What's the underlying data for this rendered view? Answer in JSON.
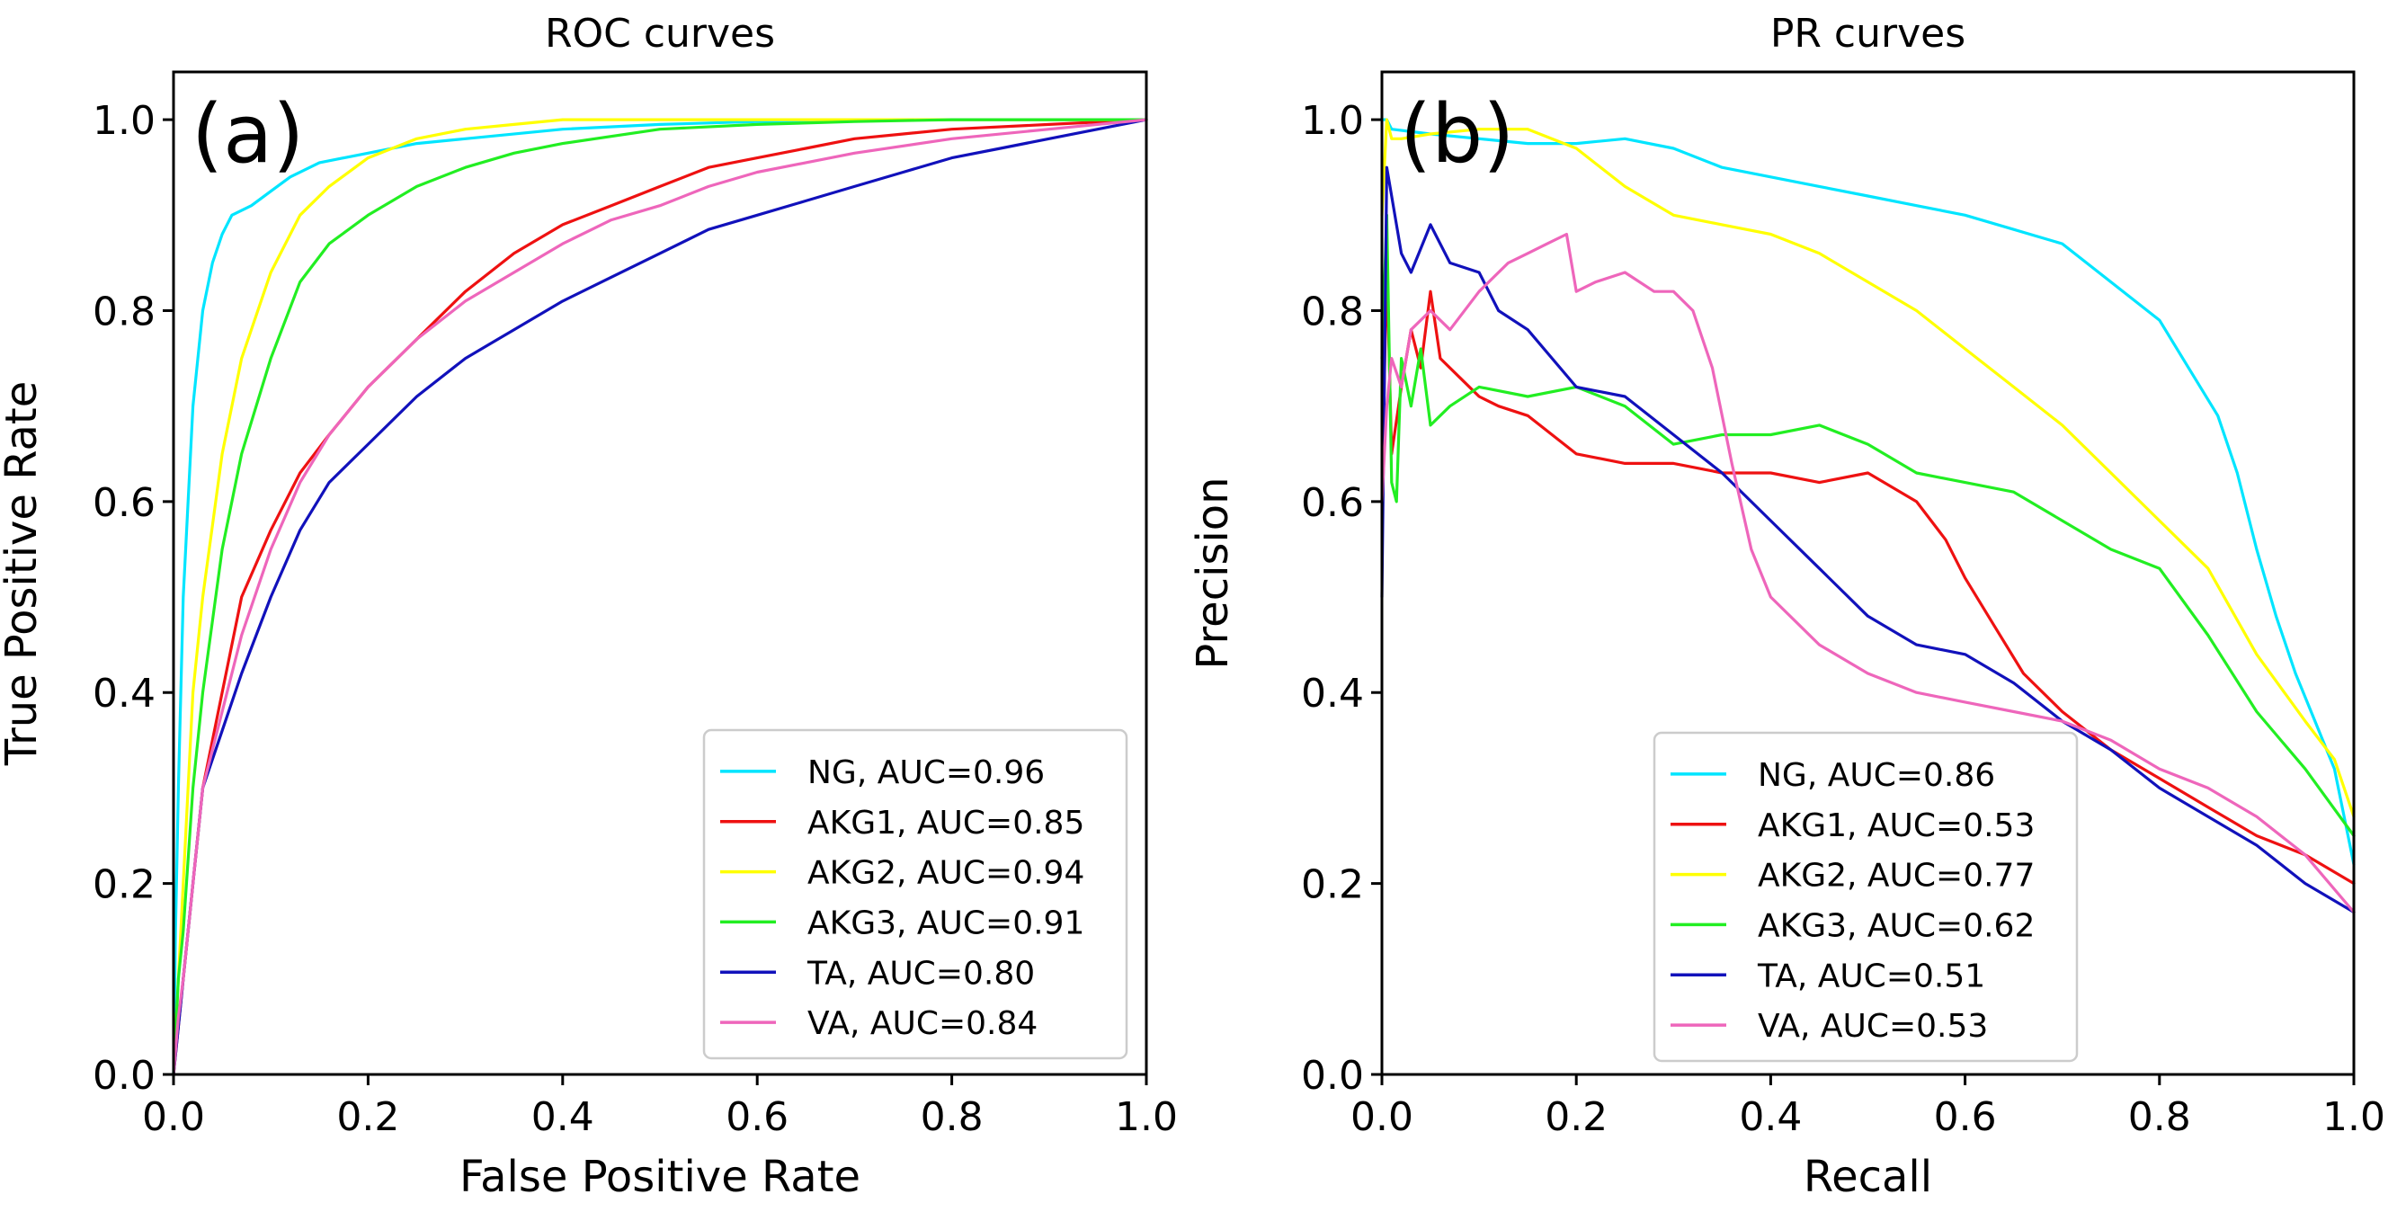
{
  "chart_data": [
    {
      "type": "line",
      "panel_label": "(a)",
      "title": "ROC curves",
      "xlabel": "False Positive Rate",
      "ylabel": "True Positive Rate",
      "xlim": [
        0.0,
        1.0
      ],
      "ylim": [
        0.0,
        1.05
      ],
      "xticks": [
        "0.0",
        "0.2",
        "0.4",
        "0.6",
        "0.8",
        "1.0"
      ],
      "yticks": [
        "0.0",
        "0.2",
        "0.4",
        "0.6",
        "0.8",
        "1.0"
      ],
      "legend_position": "lower-right",
      "series": [
        {
          "name": "NG, AUC=0.96",
          "color": "#00e5ff",
          "x": [
            0,
            0.002,
            0.005,
            0.01,
            0.02,
            0.03,
            0.04,
            0.05,
            0.06,
            0.08,
            0.1,
            0.12,
            0.15,
            0.2,
            0.25,
            0.3,
            0.4,
            0.5,
            0.6,
            0.8,
            1.0
          ],
          "y": [
            0,
            0.15,
            0.3,
            0.5,
            0.7,
            0.8,
            0.85,
            0.88,
            0.9,
            0.91,
            0.925,
            0.94,
            0.955,
            0.965,
            0.975,
            0.98,
            0.99,
            0.995,
            0.998,
            1.0,
            1.0
          ]
        },
        {
          "name": "AKG1, AUC=0.85",
          "color": "#ee1111",
          "x": [
            0,
            0.005,
            0.01,
            0.02,
            0.03,
            0.05,
            0.07,
            0.1,
            0.13,
            0.16,
            0.2,
            0.25,
            0.3,
            0.35,
            0.4,
            0.45,
            0.5,
            0.55,
            0.6,
            0.65,
            0.7,
            0.75,
            0.8,
            0.9,
            1.0
          ],
          "y": [
            0,
            0.05,
            0.1,
            0.2,
            0.3,
            0.4,
            0.5,
            0.57,
            0.63,
            0.67,
            0.72,
            0.77,
            0.82,
            0.86,
            0.89,
            0.91,
            0.93,
            0.95,
            0.96,
            0.97,
            0.98,
            0.985,
            0.99,
            0.995,
            1.0
          ]
        },
        {
          "name": "AKG2, AUC=0.94",
          "color": "#ffff00",
          "x": [
            0,
            0.005,
            0.01,
            0.02,
            0.03,
            0.05,
            0.07,
            0.1,
            0.13,
            0.16,
            0.2,
            0.25,
            0.3,
            0.35,
            0.4,
            0.5,
            0.6,
            0.8,
            1.0
          ],
          "y": [
            0,
            0.1,
            0.2,
            0.4,
            0.5,
            0.65,
            0.75,
            0.84,
            0.9,
            0.93,
            0.96,
            0.98,
            0.99,
            0.995,
            1.0,
            1.0,
            1.0,
            1.0,
            1.0
          ]
        },
        {
          "name": "AKG3, AUC=0.91",
          "color": "#22ee22",
          "x": [
            0,
            0.005,
            0.01,
            0.02,
            0.03,
            0.05,
            0.07,
            0.1,
            0.13,
            0.16,
            0.2,
            0.25,
            0.3,
            0.35,
            0.4,
            0.5,
            0.6,
            0.7,
            0.8,
            1.0
          ],
          "y": [
            0,
            0.1,
            0.15,
            0.3,
            0.4,
            0.55,
            0.65,
            0.75,
            0.83,
            0.87,
            0.9,
            0.93,
            0.95,
            0.965,
            0.975,
            0.99,
            0.995,
            0.998,
            1.0,
            1.0
          ]
        },
        {
          "name": "TA, AUC=0.80",
          "color": "#1111bb",
          "x": [
            0,
            0.005,
            0.01,
            0.02,
            0.03,
            0.05,
            0.07,
            0.1,
            0.13,
            0.16,
            0.2,
            0.25,
            0.3,
            0.35,
            0.4,
            0.45,
            0.5,
            0.55,
            0.6,
            0.65,
            0.7,
            0.75,
            0.8,
            0.85,
            0.9,
            0.95,
            1.0
          ],
          "y": [
            0,
            0.05,
            0.1,
            0.2,
            0.3,
            0.36,
            0.42,
            0.5,
            0.57,
            0.62,
            0.66,
            0.71,
            0.75,
            0.78,
            0.81,
            0.835,
            0.86,
            0.885,
            0.9,
            0.915,
            0.93,
            0.945,
            0.96,
            0.97,
            0.98,
            0.99,
            1.0
          ]
        },
        {
          "name": "VA, AUC=0.84",
          "color": "#ee66bb",
          "x": [
            0,
            0.005,
            0.01,
            0.02,
            0.03,
            0.05,
            0.07,
            0.1,
            0.13,
            0.16,
            0.2,
            0.25,
            0.3,
            0.35,
            0.4,
            0.45,
            0.5,
            0.55,
            0.6,
            0.65,
            0.7,
            0.8,
            0.9,
            1.0
          ],
          "y": [
            0,
            0.06,
            0.1,
            0.2,
            0.3,
            0.38,
            0.46,
            0.55,
            0.62,
            0.67,
            0.72,
            0.77,
            0.81,
            0.84,
            0.87,
            0.895,
            0.91,
            0.93,
            0.945,
            0.955,
            0.965,
            0.98,
            0.99,
            1.0
          ]
        }
      ]
    },
    {
      "type": "line",
      "panel_label": "(b)",
      "title": "PR curves",
      "xlabel": "Recall",
      "ylabel": "Precision",
      "xlim": [
        0.0,
        1.0
      ],
      "ylim": [
        0.0,
        1.05
      ],
      "xticks": [
        "0.0",
        "0.2",
        "0.4",
        "0.6",
        "0.8",
        "1.0"
      ],
      "yticks": [
        "0.0",
        "0.2",
        "0.4",
        "0.6",
        "0.8",
        "1.0"
      ],
      "legend_position": "lower-center",
      "series": [
        {
          "name": "NG, AUC=0.86",
          "color": "#00e5ff",
          "x": [
            0,
            0.005,
            0.01,
            0.05,
            0.1,
            0.15,
            0.2,
            0.25,
            0.3,
            0.35,
            0.4,
            0.45,
            0.5,
            0.55,
            0.6,
            0.65,
            0.7,
            0.75,
            0.8,
            0.83,
            0.86,
            0.88,
            0.9,
            0.92,
            0.94,
            0.96,
            0.98,
            1.0
          ],
          "y": [
            1.0,
            1.0,
            0.99,
            0.985,
            0.98,
            0.975,
            0.975,
            0.98,
            0.97,
            0.95,
            0.94,
            0.93,
            0.92,
            0.91,
            0.9,
            0.885,
            0.87,
            0.83,
            0.79,
            0.74,
            0.69,
            0.63,
            0.55,
            0.48,
            0.42,
            0.37,
            0.32,
            0.22
          ]
        },
        {
          "name": "AKG1, AUC=0.53",
          "color": "#ee1111",
          "x": [
            0,
            0.005,
            0.01,
            0.02,
            0.03,
            0.04,
            0.05,
            0.06,
            0.08,
            0.1,
            0.12,
            0.15,
            0.2,
            0.25,
            0.3,
            0.35,
            0.4,
            0.45,
            0.5,
            0.55,
            0.58,
            0.6,
            0.63,
            0.66,
            0.7,
            0.75,
            0.8,
            0.85,
            0.9,
            0.95,
            1.0
          ],
          "y": [
            0.6,
            0.85,
            0.65,
            0.72,
            0.78,
            0.74,
            0.82,
            0.75,
            0.73,
            0.71,
            0.7,
            0.69,
            0.65,
            0.64,
            0.64,
            0.63,
            0.63,
            0.62,
            0.63,
            0.6,
            0.56,
            0.52,
            0.47,
            0.42,
            0.38,
            0.34,
            0.31,
            0.28,
            0.25,
            0.23,
            0.2
          ]
        },
        {
          "name": "AKG2, AUC=0.77",
          "color": "#ffff00",
          "x": [
            0,
            0.005,
            0.01,
            0.02,
            0.05,
            0.1,
            0.15,
            0.2,
            0.25,
            0.3,
            0.35,
            0.4,
            0.45,
            0.5,
            0.55,
            0.6,
            0.65,
            0.7,
            0.75,
            0.8,
            0.85,
            0.9,
            0.95,
            0.98,
            1.0
          ],
          "y": [
            0.9,
            1.0,
            0.98,
            0.98,
            0.985,
            0.99,
            0.99,
            0.97,
            0.93,
            0.9,
            0.89,
            0.88,
            0.86,
            0.83,
            0.8,
            0.76,
            0.72,
            0.68,
            0.63,
            0.58,
            0.53,
            0.44,
            0.37,
            0.33,
            0.27
          ]
        },
        {
          "name": "AKG3, AUC=0.62",
          "color": "#22ee22",
          "x": [
            0,
            0.005,
            0.01,
            0.015,
            0.02,
            0.03,
            0.04,
            0.05,
            0.07,
            0.1,
            0.15,
            0.2,
            0.25,
            0.3,
            0.35,
            0.4,
            0.45,
            0.5,
            0.55,
            0.6,
            0.65,
            0.7,
            0.75,
            0.8,
            0.85,
            0.9,
            0.95,
            1.0
          ],
          "y": [
            0.75,
            0.9,
            0.62,
            0.6,
            0.75,
            0.7,
            0.76,
            0.68,
            0.7,
            0.72,
            0.71,
            0.72,
            0.7,
            0.66,
            0.67,
            0.67,
            0.68,
            0.66,
            0.63,
            0.62,
            0.61,
            0.58,
            0.55,
            0.53,
            0.46,
            0.38,
            0.32,
            0.25
          ]
        },
        {
          "name": "TA, AUC=0.51",
          "color": "#1111bb",
          "x": [
            0,
            0.005,
            0.01,
            0.02,
            0.03,
            0.05,
            0.07,
            0.1,
            0.12,
            0.15,
            0.2,
            0.25,
            0.3,
            0.35,
            0.4,
            0.45,
            0.5,
            0.55,
            0.6,
            0.65,
            0.7,
            0.75,
            0.8,
            0.85,
            0.9,
            0.95,
            1.0
          ],
          "y": [
            0.5,
            0.95,
            0.92,
            0.86,
            0.84,
            0.89,
            0.85,
            0.84,
            0.8,
            0.78,
            0.72,
            0.71,
            0.67,
            0.63,
            0.58,
            0.53,
            0.48,
            0.45,
            0.44,
            0.41,
            0.37,
            0.34,
            0.3,
            0.27,
            0.24,
            0.2,
            0.17
          ]
        },
        {
          "name": "VA, AUC=0.53",
          "color": "#ee66bb",
          "x": [
            0,
            0.005,
            0.01,
            0.02,
            0.03,
            0.05,
            0.07,
            0.1,
            0.13,
            0.15,
            0.17,
            0.19,
            0.2,
            0.22,
            0.25,
            0.28,
            0.3,
            0.32,
            0.34,
            0.36,
            0.38,
            0.4,
            0.45,
            0.5,
            0.55,
            0.6,
            0.65,
            0.7,
            0.75,
            0.8,
            0.85,
            0.9,
            0.95,
            1.0
          ],
          "y": [
            0.6,
            0.7,
            0.75,
            0.72,
            0.78,
            0.8,
            0.78,
            0.82,
            0.85,
            0.86,
            0.87,
            0.88,
            0.82,
            0.83,
            0.84,
            0.82,
            0.82,
            0.8,
            0.74,
            0.64,
            0.55,
            0.5,
            0.45,
            0.42,
            0.4,
            0.39,
            0.38,
            0.37,
            0.35,
            0.32,
            0.3,
            0.27,
            0.23,
            0.17
          ]
        }
      ]
    }
  ]
}
